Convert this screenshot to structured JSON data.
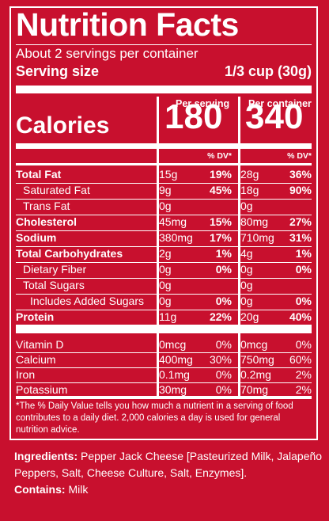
{
  "label": {
    "title": "Nutrition Facts",
    "servings_per_container": "About 2 servings per container",
    "serving_size_label": "Serving size",
    "serving_size_value": "1/3 cup (30g)",
    "col1_header": "Per serving",
    "col2_header": "Per container",
    "calories_label": "Calories",
    "calories_serving": "180",
    "calories_container": "340",
    "dv_header": "% DV*",
    "nutrients": [
      {
        "name": "Total Fat",
        "bold": true,
        "indent": 0,
        "amt1": "15g",
        "dv1": "19%",
        "amt2": "28g",
        "dv2": "36%"
      },
      {
        "name": "Saturated Fat",
        "bold": false,
        "indent": 1,
        "amt1": "9g",
        "dv1": "45%",
        "amt2": "18g",
        "dv2": "90%"
      },
      {
        "name": "Trans Fat",
        "bold": false,
        "indent": 1,
        "amt1": "0g",
        "dv1": "",
        "amt2": "0g",
        "dv2": ""
      },
      {
        "name": "Cholesterol",
        "bold": true,
        "indent": 0,
        "amt1": "45mg",
        "dv1": "15%",
        "amt2": "80mg",
        "dv2": "27%"
      },
      {
        "name": "Sodium",
        "bold": true,
        "indent": 0,
        "amt1": "380mg",
        "dv1": "17%",
        "amt2": "710mg",
        "dv2": "31%"
      },
      {
        "name": "Total Carbohydrates",
        "bold": true,
        "indent": 0,
        "amt1": "2g",
        "dv1": "1%",
        "amt2": "4g",
        "dv2": "1%"
      },
      {
        "name": "Dietary Fiber",
        "bold": false,
        "indent": 1,
        "amt1": "0g",
        "dv1": "0%",
        "amt2": "0g",
        "dv2": "0%"
      },
      {
        "name": "Total Sugars",
        "bold": false,
        "indent": 1,
        "amt1": "0g",
        "dv1": "",
        "amt2": "0g",
        "dv2": ""
      },
      {
        "name": "Includes Added Sugars",
        "bold": false,
        "indent": 2,
        "amt1": "0g",
        "dv1": "0%",
        "amt2": "0g",
        "dv2": "0%"
      },
      {
        "name": "Protein",
        "bold": true,
        "indent": 0,
        "amt1": "11g",
        "dv1": "22%",
        "amt2": "20g",
        "dv2": "40%"
      }
    ],
    "vitamins": [
      {
        "name": "Vitamin D",
        "amt1": "0mcg",
        "dv1": "0%",
        "amt2": "0mcg",
        "dv2": "0%"
      },
      {
        "name": "Calcium",
        "amt1": "400mg",
        "dv1": "30%",
        "amt2": "750mg",
        "dv2": "60%"
      },
      {
        "name": "Iron",
        "amt1": "0.1mg",
        "dv1": "0%",
        "amt2": "0.2mg",
        "dv2": "2%"
      },
      {
        "name": "Potassium",
        "amt1": "30mg",
        "dv1": "0%",
        "amt2": "70mg",
        "dv2": "2%"
      }
    ],
    "footnote": "*The % Daily Value tells you how much a nutrient in a serving of food contributes to a daily diet. 2,000 calories a day is used for general nutrition advice."
  },
  "ingredients": {
    "label": "Ingredients:",
    "text": " Pepper Jack Cheese [Pasteurized Milk, Jalapeño Peppers, Salt, Cheese Culture, Salt, Enzymes].",
    "contains_label": "Contains:",
    "contains_text": " Milk"
  },
  "colors": {
    "background": "#c8102e",
    "text": "#ffffff"
  }
}
